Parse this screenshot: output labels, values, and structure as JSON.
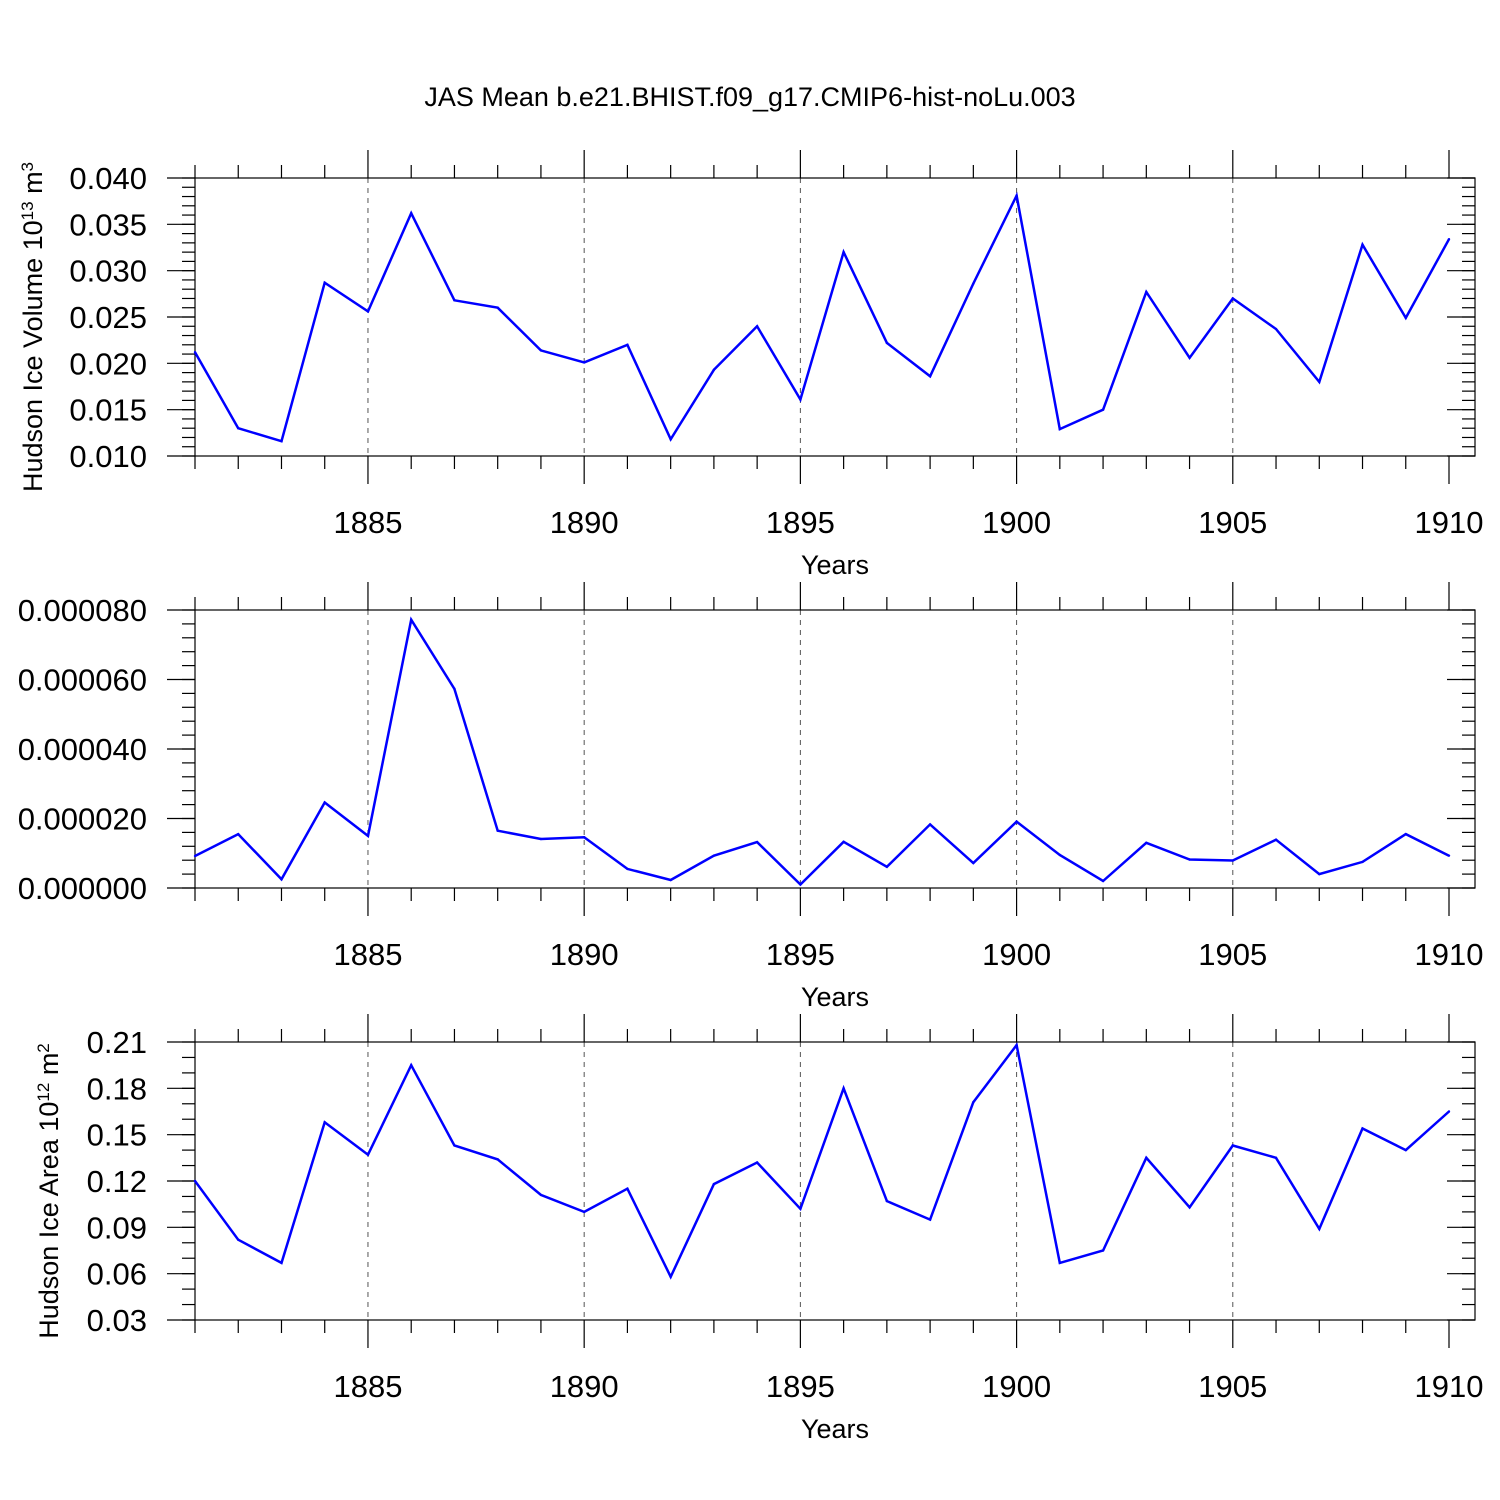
{
  "title": "JAS Mean b.e21.BHIST.f09_g17.CMIP6-hist-noLu.003",
  "colors": {
    "line": "#0000ff",
    "axis": "#000000",
    "grid": "#555555"
  },
  "chart_data": [
    {
      "type": "line",
      "name": "volume",
      "ylabel": "Hudson Ice Volume 10",
      "ylabel_exp": "13",
      "ylabel_unit": " m",
      "ylabel_unit_exp": "3",
      "xlabel": "Years",
      "xlim": [
        1881,
        1910
      ],
      "ylim": [
        0.01,
        0.04
      ],
      "x_ticks": [
        1885,
        1890,
        1895,
        1900,
        1905,
        1910
      ],
      "y_ticks": [
        0.01,
        0.015,
        0.02,
        0.025,
        0.03,
        0.035,
        0.04
      ],
      "y_tick_labels": [
        "0.010",
        "0.015",
        "0.020",
        "0.025",
        "0.030",
        "0.035",
        "0.040"
      ],
      "y_minor_step": 0.001,
      "x": [
        1881,
        1882,
        1883,
        1884,
        1885,
        1886,
        1887,
        1888,
        1889,
        1890,
        1891,
        1892,
        1893,
        1894,
        1895,
        1896,
        1897,
        1898,
        1899,
        1900,
        1901,
        1902,
        1903,
        1904,
        1905,
        1906,
        1907,
        1908,
        1909,
        1910
      ],
      "values": [
        0.0212,
        0.013,
        0.0116,
        0.0287,
        0.0256,
        0.0362,
        0.0268,
        0.026,
        0.0214,
        0.0201,
        0.022,
        0.0118,
        0.0193,
        0.024,
        0.0161,
        0.032,
        0.0222,
        0.0186,
        0.0286,
        0.0381,
        0.0129,
        0.015,
        0.0277,
        0.0206,
        0.027,
        0.0237,
        0.018,
        0.0328,
        0.0249,
        0.0334
      ]
    },
    {
      "type": "line",
      "name": "middle",
      "ylabel": "",
      "xlabel": "Years",
      "xlim": [
        1881,
        1910
      ],
      "ylim": [
        0.0,
        8e-05
      ],
      "x_ticks": [
        1885,
        1890,
        1895,
        1900,
        1905,
        1910
      ],
      "y_ticks": [
        0.0,
        2e-05,
        4e-05,
        6e-05,
        8e-05
      ],
      "y_tick_labels": [
        "0.000000",
        "0.000020",
        "0.000040",
        "0.000060",
        "0.000080"
      ],
      "y_minor_step": 4e-06,
      "x": [
        1881,
        1882,
        1883,
        1884,
        1885,
        1886,
        1887,
        1888,
        1889,
        1890,
        1891,
        1892,
        1893,
        1894,
        1895,
        1896,
        1897,
        1898,
        1899,
        1900,
        1901,
        1902,
        1903,
        1904,
        1905,
        1906,
        1907,
        1908,
        1909,
        1910
      ],
      "values": [
        9.2e-06,
        1.55e-05,
        2.5e-06,
        2.46e-05,
        1.5e-05,
        7.72e-05,
        5.73e-05,
        1.65e-05,
        1.41e-05,
        1.46e-05,
        5.5e-06,
        2.3e-06,
        9.3e-06,
        1.32e-05,
        1e-06,
        1.33e-05,
        6.1e-06,
        1.83e-05,
        7.2e-06,
        1.91e-05,
        9.5e-06,
        2e-06,
        1.3e-05,
        8.2e-06,
        7.9e-06,
        1.39e-05,
        4e-06,
        7.5e-06,
        1.55e-05,
        9.3e-06
      ]
    },
    {
      "type": "line",
      "name": "area",
      "ylabel": "Hudson Ice Area 10",
      "ylabel_exp": "12",
      "ylabel_unit": " m",
      "ylabel_unit_exp": "2",
      "xlabel": "Years",
      "xlim": [
        1881,
        1910
      ],
      "ylim": [
        0.03,
        0.21
      ],
      "x_ticks": [
        1885,
        1890,
        1895,
        1900,
        1905,
        1910
      ],
      "y_ticks": [
        0.03,
        0.06,
        0.09,
        0.12,
        0.15,
        0.18,
        0.21
      ],
      "y_tick_labels": [
        "0.03",
        "0.06",
        "0.09",
        "0.12",
        "0.15",
        "0.18",
        "0.21"
      ],
      "y_minor_step": 0.01,
      "x": [
        1881,
        1882,
        1883,
        1884,
        1885,
        1886,
        1887,
        1888,
        1889,
        1890,
        1891,
        1892,
        1893,
        1894,
        1895,
        1896,
        1897,
        1898,
        1899,
        1900,
        1901,
        1902,
        1903,
        1904,
        1905,
        1906,
        1907,
        1908,
        1909,
        1910
      ],
      "values": [
        0.12,
        0.082,
        0.067,
        0.158,
        0.137,
        0.195,
        0.143,
        0.134,
        0.111,
        0.1,
        0.115,
        0.058,
        0.118,
        0.132,
        0.102,
        0.18,
        0.107,
        0.095,
        0.171,
        0.208,
        0.067,
        0.075,
        0.135,
        0.103,
        0.143,
        0.135,
        0.089,
        0.154,
        0.14,
        0.165
      ]
    }
  ]
}
